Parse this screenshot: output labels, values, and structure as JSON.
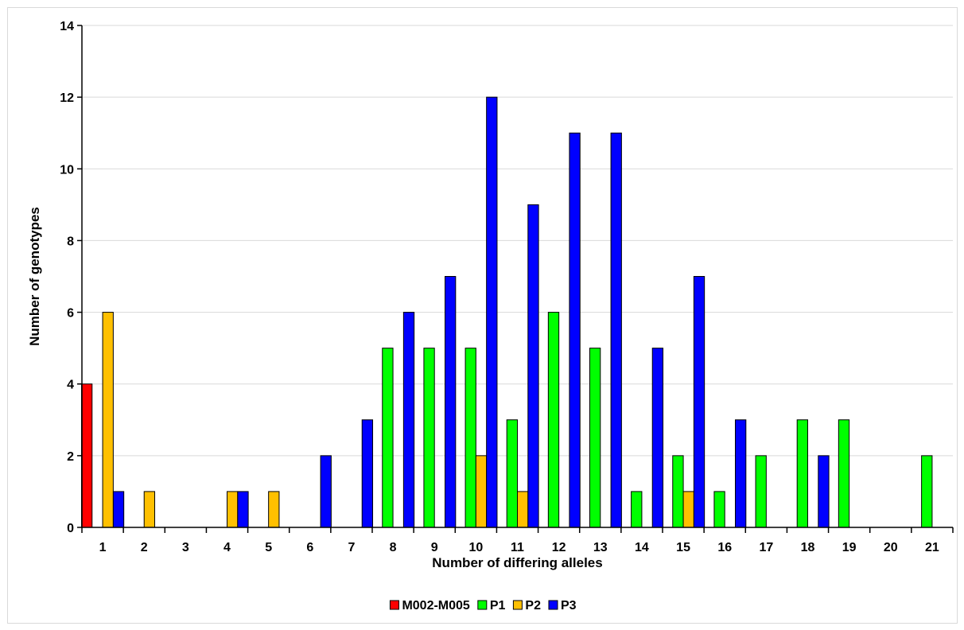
{
  "chart_data": {
    "type": "bar",
    "title": "",
    "xlabel": "Number of differing alleles",
    "ylabel": "Number of genotypes",
    "ylim": [
      0,
      14
    ],
    "yticks": [
      0,
      2,
      4,
      6,
      8,
      10,
      12,
      14
    ],
    "grid": "horizontal",
    "legend_position": "bottom",
    "categories": [
      "1",
      "2",
      "3",
      "4",
      "5",
      "6",
      "7",
      "8",
      "9",
      "10",
      "11",
      "12",
      "13",
      "14",
      "15",
      "16",
      "17",
      "18",
      "19",
      "20",
      "21"
    ],
    "series": [
      {
        "name": "M002-M005",
        "color": "#ff0000",
        "values": [
          4,
          0,
          0,
          0,
          0,
          0,
          0,
          0,
          0,
          0,
          0,
          0,
          0,
          0,
          0,
          0,
          0,
          0,
          0,
          0,
          0
        ]
      },
      {
        "name": "P1",
        "color": "#00ff00",
        "values": [
          0,
          0,
          0,
          0,
          0,
          0,
          0,
          5,
          5,
          5,
          3,
          6,
          5,
          1,
          2,
          1,
          2,
          3,
          3,
          0,
          2
        ]
      },
      {
        "name": "P2",
        "color": "#ffc000",
        "values": [
          6,
          1,
          0,
          1,
          1,
          0,
          0,
          0,
          0,
          2,
          1,
          0,
          0,
          0,
          1,
          0,
          0,
          0,
          0,
          0,
          0
        ]
      },
      {
        "name": "P3",
        "color": "#0000ff",
        "values": [
          1,
          0,
          0,
          1,
          0,
          2,
          3,
          6,
          7,
          12,
          9,
          11,
          11,
          5,
          7,
          3,
          0,
          2,
          0,
          0,
          0
        ]
      }
    ]
  }
}
